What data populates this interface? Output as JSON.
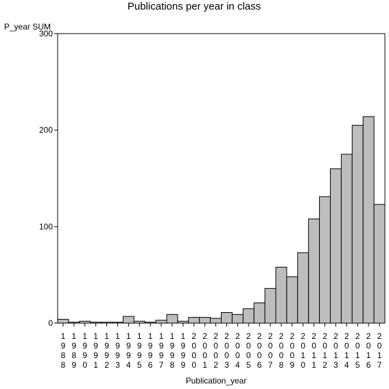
{
  "chart_data": {
    "type": "bar",
    "title": "Publications per year in class",
    "ylabel": "P_year SUM",
    "xlabel": "Publication_year",
    "ylim": [
      0,
      300
    ],
    "yticks": [
      0,
      100,
      200,
      300
    ],
    "categories": [
      "1988",
      "1989",
      "1990",
      "1991",
      "1992",
      "1993",
      "1994",
      "1995",
      "1996",
      "1997",
      "1998",
      "1999",
      "2000",
      "2001",
      "2002",
      "2003",
      "2004",
      "2005",
      "2006",
      "2007",
      "2008",
      "2009",
      "2010",
      "2011",
      "2012",
      "2013",
      "2014",
      "2015",
      "2016",
      "2017"
    ],
    "values": [
      4,
      1,
      2,
      1,
      1,
      1,
      7,
      2,
      1,
      3,
      9,
      2,
      6,
      6,
      5,
      11,
      9,
      15,
      21,
      36,
      58,
      48,
      73,
      108,
      131,
      160,
      175,
      205,
      214,
      123
    ],
    "grid": false,
    "bar_color": "#bdbdbd"
  }
}
